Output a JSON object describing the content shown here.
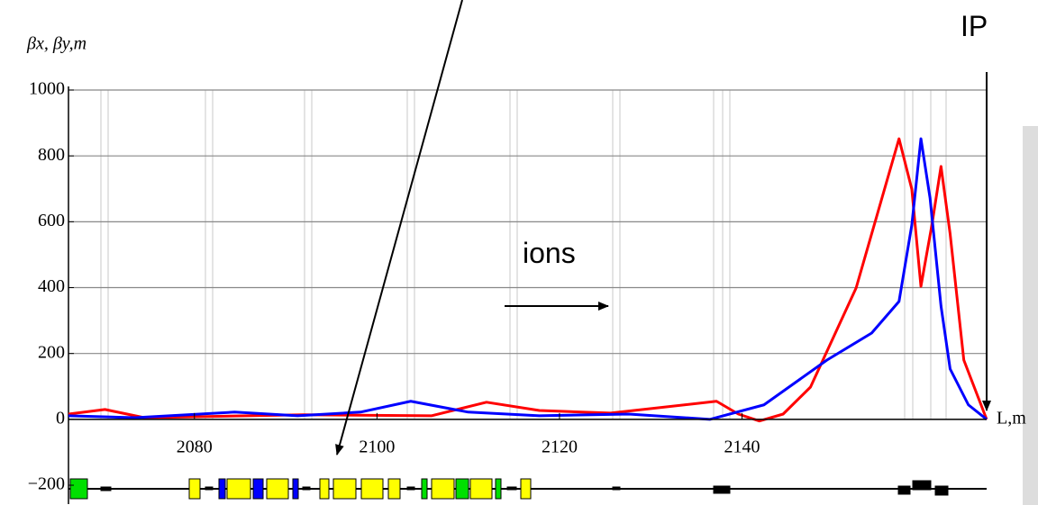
{
  "chart_data": {
    "type": "line",
    "y_label": "βx, βy,m",
    "x_label": "L,m",
    "annotations": [
      "ions",
      "IP"
    ],
    "xlim": [
      2066.2,
      2166.8
    ],
    "xticks": [
      2080,
      2100,
      2120,
      2140
    ],
    "ylim": [
      -230,
      1000
    ],
    "yticks": [
      1000,
      800,
      600,
      400,
      200,
      0,
      {
        "value": -200,
        "label": "−200"
      }
    ],
    "grid": true,
    "series": [
      {
        "name": "βy",
        "color": "#ff0000",
        "x": [
          2066.2,
          2070.2,
          2074.5,
          2092,
          2106,
          2112,
          2117.8,
          2125.6,
          2137.2,
          2139.6,
          2141.9,
          2144.5,
          2147.5,
          2152.5,
          2155.9,
          2157.2,
          2158.6,
          2159.6,
          2160.8,
          2161.8,
          2162.8,
          2164.3,
          2166.8
        ],
        "values": [
          16,
          30,
          5,
          14,
          11,
          52,
          27,
          19,
          55,
          16,
          -5,
          16,
          98,
          399,
          727,
          852,
          699,
          404,
          590,
          768,
          563,
          180,
          0
        ]
      },
      {
        "name": "βx",
        "color": "#0000ff",
        "x": [
          2066.2,
          2073.5,
          2084.4,
          2091.3,
          2098.2,
          2103.7,
          2110,
          2117.8,
          2127.6,
          2136.5,
          2142.4,
          2149.3,
          2154.2,
          2157.2,
          2158.6,
          2159.6,
          2160.6,
          2161.8,
          2162.8,
          2164.8,
          2166.8
        ],
        "values": [
          11,
          5,
          22,
          11,
          22,
          55,
          22,
          11,
          16,
          0,
          44,
          180,
          262,
          358,
          590,
          852,
          672,
          344,
          153,
          44,
          0
        ]
      }
    ]
  }
}
